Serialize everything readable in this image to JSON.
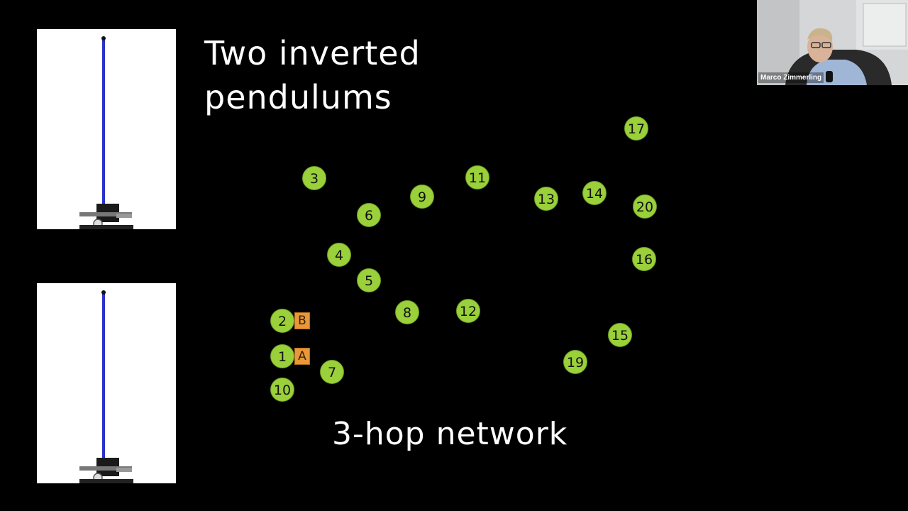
{
  "slide": {
    "title": "Two inverted\npendulums",
    "caption": "3-hop network",
    "nodes": {
      "n1": "1",
      "n2": "2",
      "n3": "3",
      "n4": "4",
      "n5": "5",
      "n6": "6",
      "n7": "7",
      "n8": "8",
      "n9": "9",
      "n10": "10",
      "n11": "11",
      "n12": "12",
      "n13": "13",
      "n14": "14",
      "n15": "15",
      "n16": "16",
      "n17": "17",
      "n19": "19",
      "n20": "20"
    },
    "tags": {
      "a": "A",
      "b": "B"
    },
    "colors": {
      "node": "#9ad03a",
      "tag": "#e8983a",
      "pendulum_rod": "#2a33c8"
    }
  },
  "video": {
    "participant_name": "Marco Zimmerling"
  }
}
